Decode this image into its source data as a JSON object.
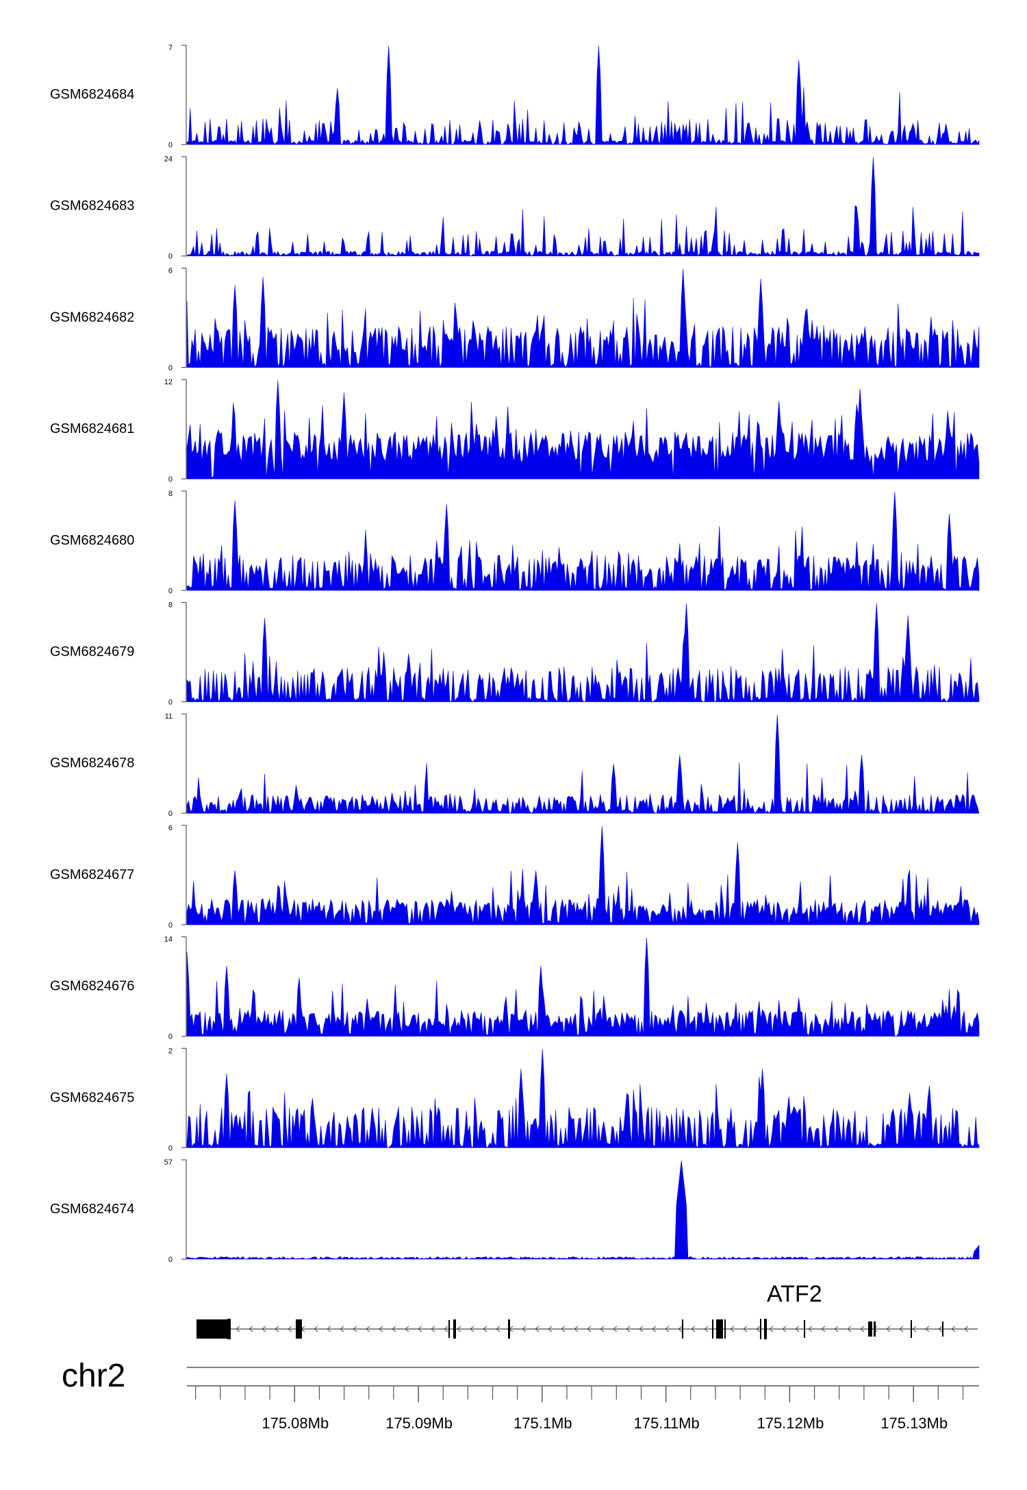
{
  "chart_data": {
    "type": "area",
    "chromosome": "chr2",
    "gene": {
      "name": "ATF2",
      "strand": "-"
    },
    "x_ticks": [
      "175.08Mb",
      "175.09Mb",
      "175.1Mb",
      "175.11Mb",
      "175.12Mb",
      "175.13Mb"
    ],
    "x_tick_values": [
      175.08,
      175.09,
      175.1,
      175.11,
      175.12,
      175.13
    ],
    "xlim": [
      175.0713,
      175.1353
    ],
    "series": [
      {
        "name": "GSM6824684",
        "ymax": "7",
        "ymin": "0",
        "max": 7,
        "peaks": [
          [
            175.0876,
            7.0
          ],
          [
            175.1046,
            7.0
          ],
          [
            175.0835,
            4.0
          ],
          [
            175.1208,
            6.0
          ]
        ]
      },
      {
        "name": "GSM6824683",
        "ymax": "24",
        "ymin": "0",
        "max": 24,
        "peaks": [
          [
            175.1268,
            24.0
          ],
          [
            175.1254,
            12.0
          ],
          [
            175.1358,
            12.0
          ]
        ]
      },
      {
        "name": "GSM6824682",
        "ymax": "6",
        "ymin": "0",
        "max": 6,
        "peaks": [
          [
            175.1114,
            6.0
          ],
          [
            175.1177,
            5.4
          ],
          [
            175.0775,
            5.5
          ],
          [
            175.0752,
            5.0
          ]
        ]
      },
      {
        "name": "GSM6824681",
        "ymax": "12",
        "ymin": "0",
        "max": 12,
        "peaks": [
          [
            175.0786,
            12.0
          ],
          [
            175.084,
            10.5
          ],
          [
            175.1257,
            11.0
          ],
          [
            175.1191,
            9.5
          ]
        ]
      },
      {
        "name": "GSM6824680",
        "ymax": "8",
        "ymin": "0",
        "max": 8,
        "peaks": [
          [
            175.1285,
            8.0
          ],
          [
            175.0752,
            7.3
          ],
          [
            175.0923,
            7.0
          ],
          [
            175.1329,
            6.2
          ]
        ]
      },
      {
        "name": "GSM6824679",
        "ymax": "8",
        "ymin": "0",
        "max": 8,
        "peaks": [
          [
            175.1116,
            8.0
          ],
          [
            175.127,
            8.0
          ],
          [
            175.1295,
            7.0
          ],
          [
            175.0776,
            6.8
          ]
        ]
      },
      {
        "name": "GSM6824678",
        "ymax": "11",
        "ymin": "0",
        "max": 11,
        "peaks": [
          [
            175.119,
            11.0
          ],
          [
            175.1111,
            6.5
          ],
          [
            175.1258,
            6.5
          ],
          [
            175.1058,
            5.5
          ]
        ]
      },
      {
        "name": "GSM6824677",
        "ymax": "6",
        "ymin": "0",
        "max": 6,
        "peaks": [
          [
            175.1048,
            6.0
          ],
          [
            175.1158,
            5.0
          ],
          [
            175.0752,
            3.3
          ],
          [
            175.0995,
            3.3
          ]
        ]
      },
      {
        "name": "GSM6824676",
        "ymax": "14",
        "ymin": "0",
        "max": 14,
        "peaks": [
          [
            175.1084,
            14.0
          ],
          [
            175.0713,
            12.0
          ],
          [
            175.0745,
            10.0
          ],
          [
            175.0999,
            10.0
          ]
        ]
      },
      {
        "name": "GSM6824675",
        "ymax": "2",
        "ymin": "0",
        "max": 2,
        "peaks": [
          [
            175.1,
            2.0
          ],
          [
            175.0983,
            1.6
          ],
          [
            175.1178,
            1.6
          ],
          [
            175.0745,
            1.5
          ]
        ]
      },
      {
        "name": "GSM6824674",
        "ymax": "57",
        "ymin": "0",
        "max": 57,
        "peaks": [
          [
            175.1112,
            57.0
          ],
          [
            175.1353,
            8.0
          ]
        ]
      }
    ]
  },
  "colors": {
    "signal": "#0000ee",
    "axis": "#555555",
    "text": "#000000"
  },
  "icons": {
    "strand": "left-arrow-chevron"
  }
}
